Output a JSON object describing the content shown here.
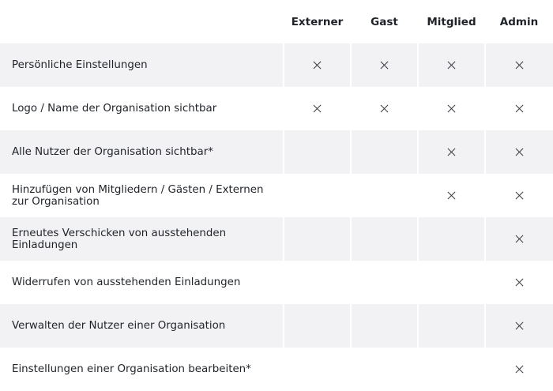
{
  "table": {
    "columns": [
      "",
      "Externer",
      "Gast",
      "Mitglied",
      "Admin"
    ],
    "rows": [
      {
        "label": "Persönliche Einstellungen",
        "permissions": [
          true,
          true,
          true,
          true
        ]
      },
      {
        "label": "Logo / Name der Organisation sichtbar",
        "permissions": [
          true,
          true,
          true,
          true
        ]
      },
      {
        "label": "Alle Nutzer der Organisation sichtbar*",
        "permissions": [
          false,
          false,
          true,
          true
        ]
      },
      {
        "label": "Hinzufügen von Mitgliedern / Gästen / Externen zur Organisation",
        "permissions": [
          false,
          false,
          true,
          true
        ]
      },
      {
        "label": "Erneutes Verschicken von ausstehenden Einladungen",
        "permissions": [
          false,
          false,
          false,
          true
        ]
      },
      {
        "label": "Widerrufen von ausstehenden Einladungen",
        "permissions": [
          false,
          false,
          false,
          true
        ]
      },
      {
        "label": "Verwalten der Nutzer einer Organisation",
        "permissions": [
          false,
          false,
          false,
          true
        ]
      },
      {
        "label": "Einstellungen einer Organisation bearbeiten*",
        "permissions": [
          false,
          false,
          false,
          true
        ]
      }
    ],
    "check_icon": "x-mark-icon"
  }
}
